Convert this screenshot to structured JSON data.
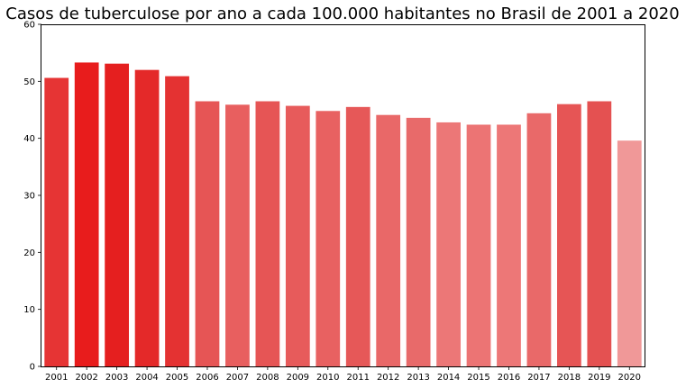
{
  "chart_data": {
    "type": "bar",
    "title": "Casos de tuberculose por ano a cada 100.000 habitantes no Brasil de 2001 a 2020",
    "xlabel": "",
    "ylabel": "",
    "ylim": [
      0,
      60
    ],
    "yticks": [
      0,
      10,
      20,
      30,
      40,
      50,
      60
    ],
    "grid": false,
    "legend": "none",
    "categories": [
      "2001",
      "2002",
      "2003",
      "2004",
      "2005",
      "2006",
      "2007",
      "2008",
      "2009",
      "2010",
      "2011",
      "2012",
      "2013",
      "2014",
      "2015",
      "2016",
      "2017",
      "2018",
      "2019",
      "2020"
    ],
    "values": [
      50.6,
      53.3,
      53.1,
      52.0,
      50.9,
      46.5,
      45.9,
      46.5,
      45.7,
      44.8,
      45.5,
      44.1,
      43.6,
      42.8,
      42.4,
      42.4,
      44.4,
      46.0,
      46.5,
      39.6
    ],
    "colors": [
      "#e63434",
      "#e81c1c",
      "#e51f1f",
      "#e42929",
      "#e43232",
      "#e65555",
      "#e85f5f",
      "#e65555",
      "#e75b5b",
      "#e86161",
      "#e65858",
      "#e96868",
      "#e86a6a",
      "#ec7777",
      "#ec7474",
      "#ed7777",
      "#e96969",
      "#e65555",
      "#e45151",
      "#f09898"
    ]
  }
}
